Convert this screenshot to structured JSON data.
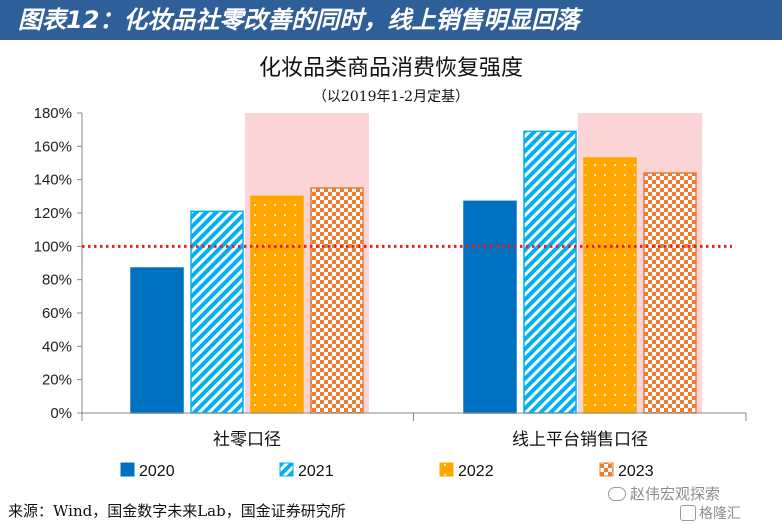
{
  "banner": {
    "title": "图表12：化妆品社零改善的同时，线上销售明显回落"
  },
  "source": "来源：Wind，国金数字未来Lab，国金证券研究所",
  "watermark": {
    "text": "赵伟宏观探索",
    "sub": "格隆汇"
  },
  "colors": {
    "banner": "#2f5f98",
    "s2020": "#0070c0",
    "s2021": "#00b0f0",
    "s2022": "#ffa600",
    "s2023": "#ed7d31",
    "highlight": "#fbd5d5",
    "reference": "#e8211e"
  },
  "chart_data": {
    "type": "bar",
    "title": "化妆品类商品消费恢复强度",
    "subtitle": "（以2019年1-2月定基）",
    "categories": [
      "社零口径",
      "线上平台销售口径"
    ],
    "series": [
      {
        "name": "2020",
        "values": [
          87,
          127
        ]
      },
      {
        "name": "2021",
        "values": [
          121,
          169
        ]
      },
      {
        "name": "2022",
        "values": [
          130,
          153
        ]
      },
      {
        "name": "2023",
        "values": [
          135,
          144
        ]
      }
    ],
    "yunit": "%",
    "ylim": [
      0,
      180
    ],
    "yticks": [
      0,
      20,
      40,
      60,
      80,
      100,
      120,
      140,
      160,
      180
    ],
    "reference_line": 100,
    "highlight_series": [
      "2022",
      "2023"
    ],
    "legend_position": "bottom",
    "grid": false
  }
}
